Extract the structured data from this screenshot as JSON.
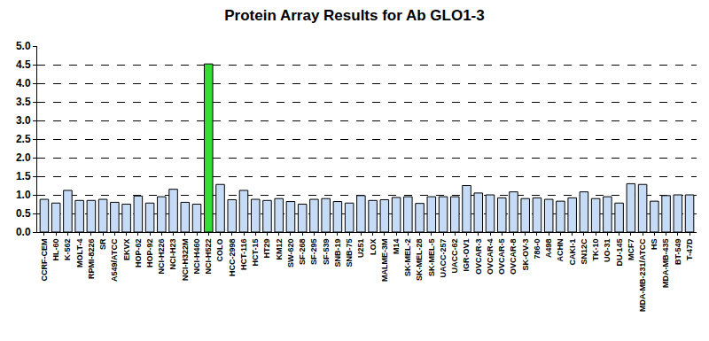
{
  "chart_data": {
    "type": "bar",
    "title": "Protein Array Results for Ab GLO1-3",
    "categories": [
      "CCRF-CEM",
      "HL-60",
      "K-562",
      "MOLT-4",
      "RPMI-8226",
      "SR",
      "A549/ATCC",
      "EKVX",
      "HOP-62",
      "HOP-92",
      "NCI-H226",
      "NCI-H23",
      "NCI-H322M",
      "NCI-H460",
      "NCI-H522",
      "COLO",
      "HCC-2998",
      "HCT-116",
      "HCT-15",
      "HT29",
      "KM12",
      "SW-620",
      "SF-268",
      "SF-295",
      "SF-539",
      "SNB-19",
      "SNB-75",
      "U251",
      "LOX",
      "MALME-3M",
      "M14",
      "SK-MEL-2",
      "SK-MEL-28",
      "SK-MEL-5",
      "UACC-257",
      "UACC-62",
      "IGR-OV1",
      "OVCAR-3",
      "OVCAR-4",
      "OVCAR-5",
      "OVCAR-8",
      "SK-OV-3",
      "786-0",
      "A498",
      "ACHN",
      "CAKI-1",
      "SN12C",
      "TK-10",
      "UO-31",
      "DU-145",
      "MCF7",
      "MDA-MB-231/ATCC",
      "HS",
      "MDA-MB-435",
      "BT-549",
      "T-47D"
    ],
    "values": [
      0.88,
      0.78,
      1.12,
      0.85,
      0.85,
      0.88,
      0.8,
      0.75,
      0.97,
      0.78,
      0.95,
      1.15,
      0.8,
      0.75,
      4.52,
      1.28,
      0.87,
      1.12,
      0.88,
      0.85,
      0.9,
      0.82,
      0.75,
      0.88,
      0.9,
      0.82,
      0.78,
      0.98,
      0.85,
      0.87,
      0.93,
      0.95,
      0.77,
      0.95,
      0.95,
      0.95,
      1.25,
      1.05,
      1.0,
      0.92,
      1.08,
      0.9,
      0.92,
      0.88,
      0.83,
      0.92,
      1.08,
      0.9,
      0.95,
      0.78,
      1.3,
      1.28,
      0.83,
      0.98,
      1.0,
      1.0
    ],
    "colors": [
      "#c6dbf5",
      "#c6dbf5",
      "#c6dbf5",
      "#c6dbf5",
      "#c6dbf5",
      "#c6dbf5",
      "#c6dbf5",
      "#c6dbf5",
      "#c6dbf5",
      "#c6dbf5",
      "#c6dbf5",
      "#c6dbf5",
      "#c6dbf5",
      "#c6dbf5",
      "#33dd33",
      "#c6dbf5",
      "#c6dbf5",
      "#c6dbf5",
      "#c6dbf5",
      "#c6dbf5",
      "#c6dbf5",
      "#c6dbf5",
      "#c6dbf5",
      "#c6dbf5",
      "#c6dbf5",
      "#c6dbf5",
      "#c6dbf5",
      "#c6dbf5",
      "#c6dbf5",
      "#c6dbf5",
      "#c6dbf5",
      "#c6dbf5",
      "#c6dbf5",
      "#c6dbf5",
      "#c6dbf5",
      "#c6dbf5",
      "#c6dbf5",
      "#c6dbf5",
      "#c6dbf5",
      "#c6dbf5",
      "#c6dbf5",
      "#c6dbf5",
      "#c6dbf5",
      "#c6dbf5",
      "#c6dbf5",
      "#c6dbf5",
      "#c6dbf5",
      "#c6dbf5",
      "#c6dbf5",
      "#c6dbf5",
      "#c6dbf5",
      "#c6dbf5",
      "#c6dbf5",
      "#c6dbf5",
      "#c6dbf5",
      "#c6dbf5"
    ],
    "ylim": [
      0,
      5
    ],
    "yticks": [
      {
        "value": 0,
        "label": "0.0"
      },
      {
        "value": 0.5,
        "label": "0.5"
      },
      {
        "value": 1,
        "label": "1.0"
      },
      {
        "value": 1.5,
        "label": "1.5"
      },
      {
        "value": 2,
        "label": "2.0"
      },
      {
        "value": 2.5,
        "label": "2.5"
      },
      {
        "value": 3,
        "label": "3.0"
      },
      {
        "value": 3.5,
        "label": "3.5"
      },
      {
        "value": 4,
        "label": "4.0"
      },
      {
        "value": 4.5,
        "label": "4.5"
      },
      {
        "value": 5,
        "label": "5.0"
      }
    ],
    "grid": true
  }
}
